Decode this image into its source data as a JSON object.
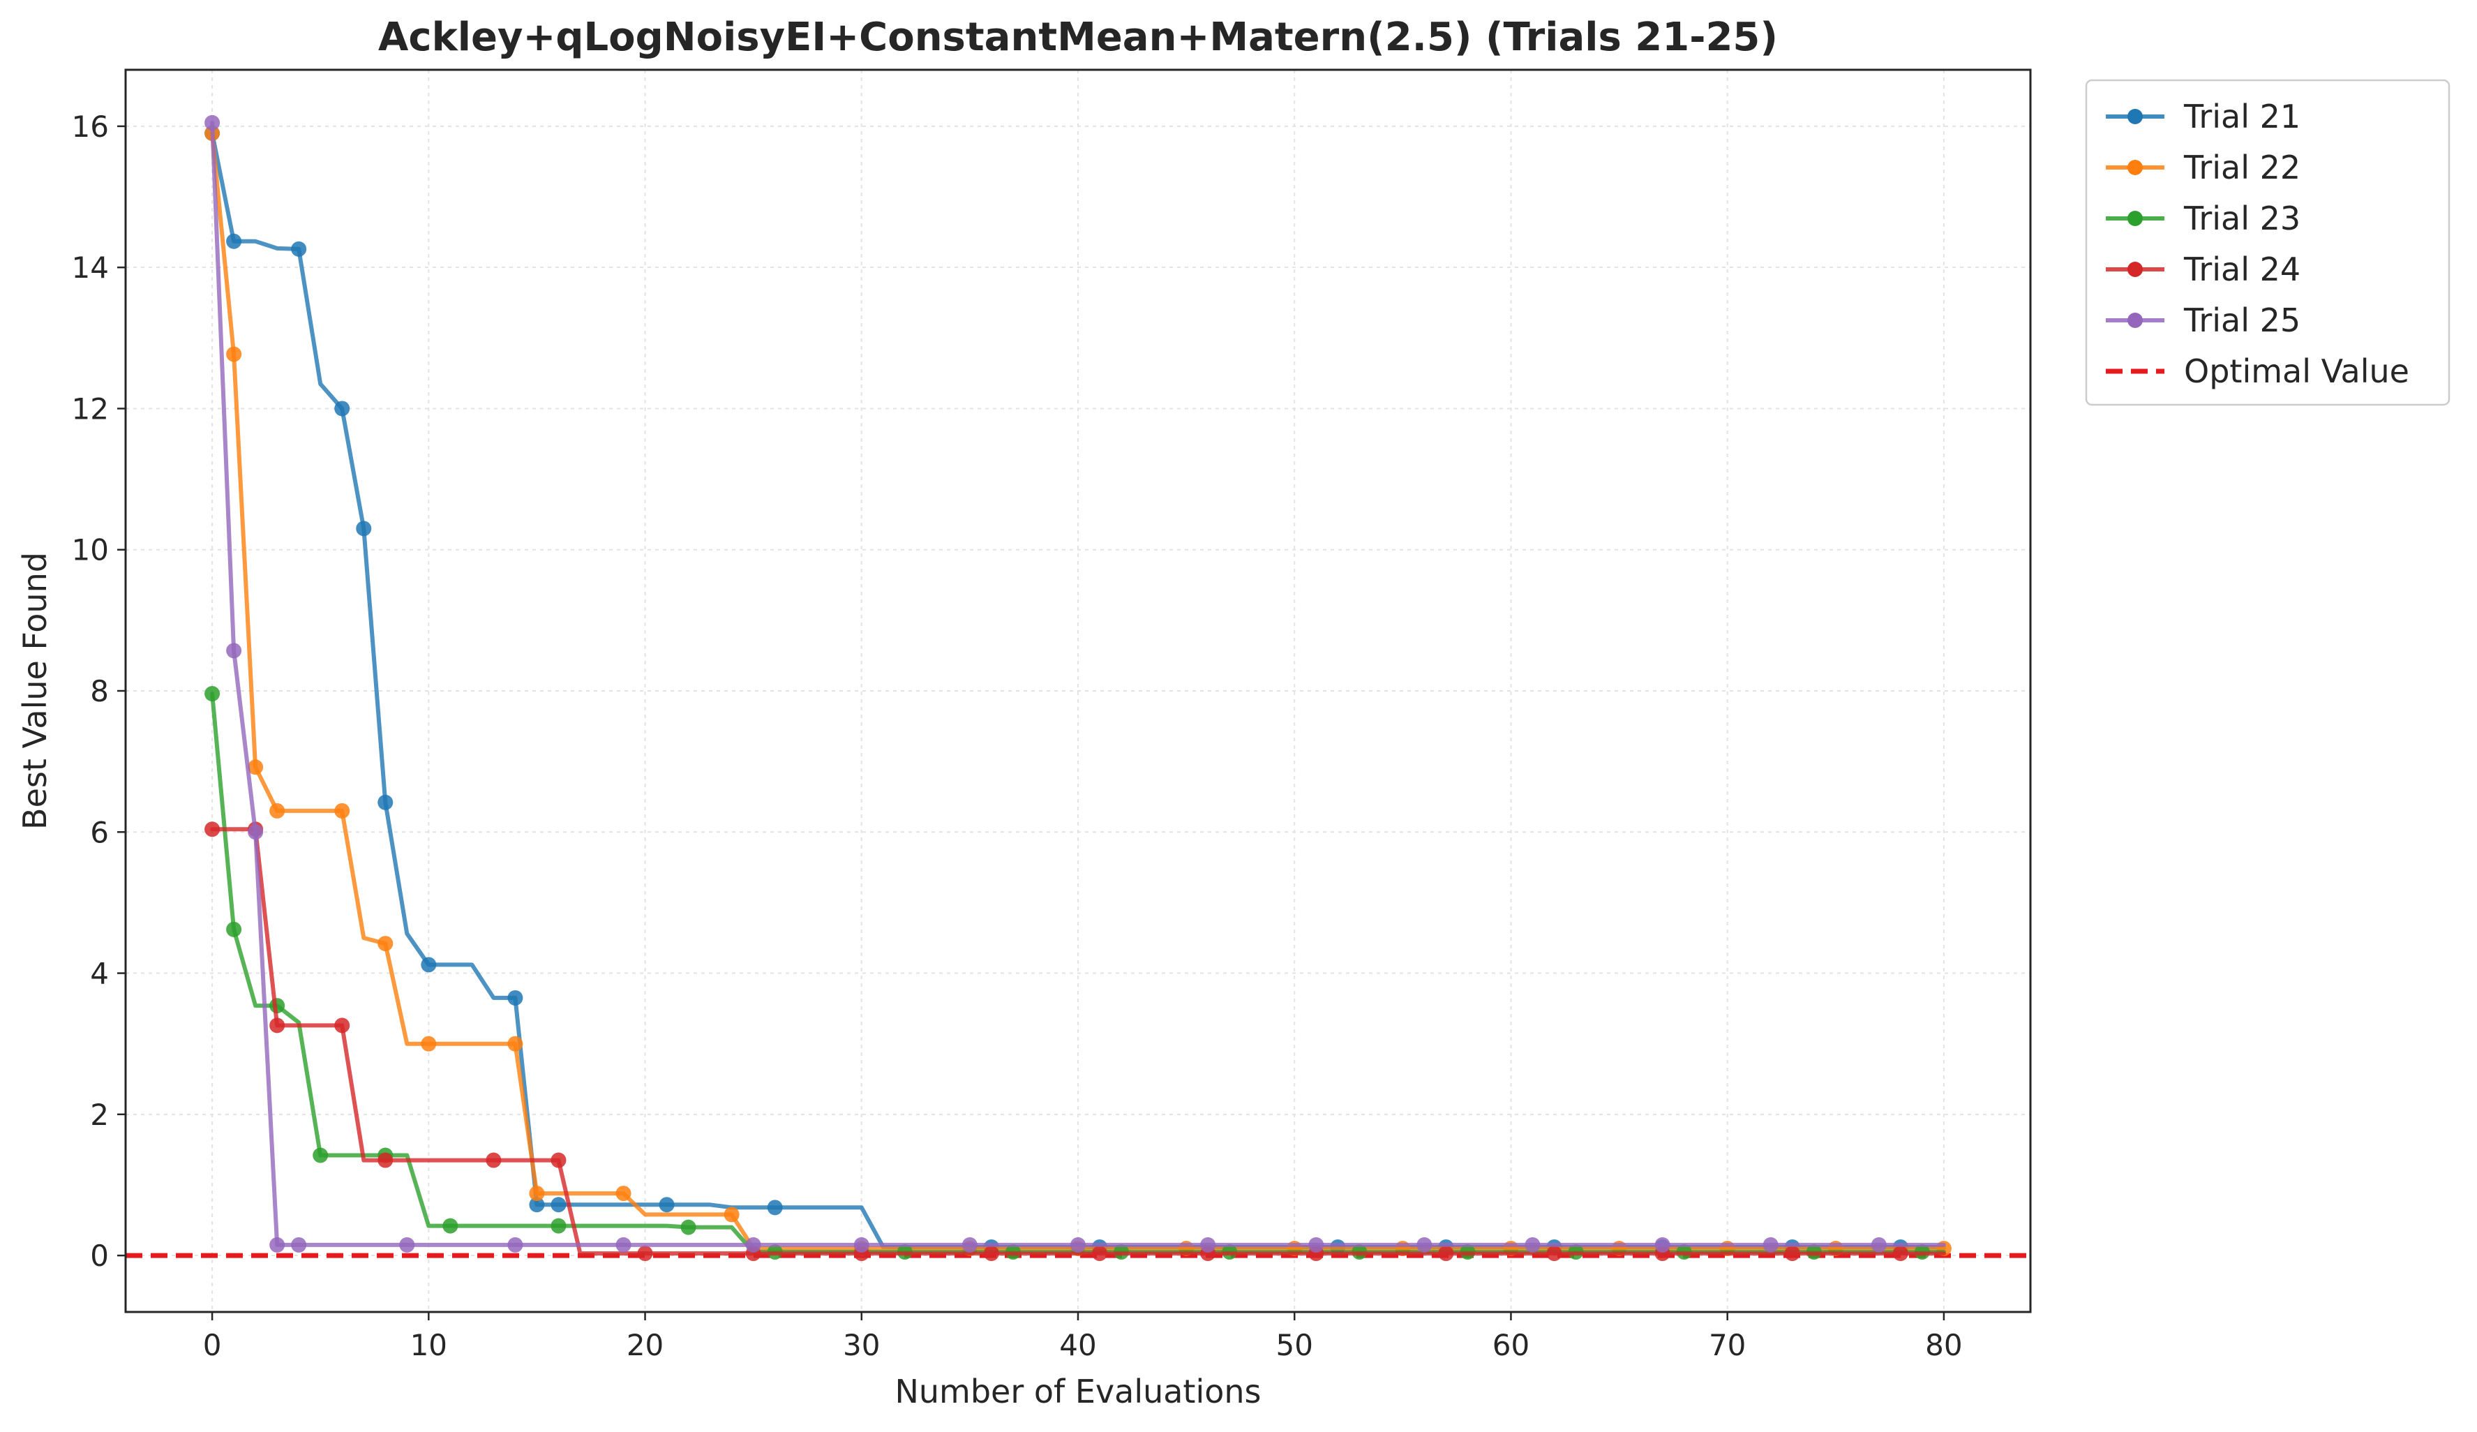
{
  "chart_data": {
    "type": "line",
    "title": "Ackley+qLogNoisyEI+ConstantMean+Matern(2.5) (Trials 21-25)",
    "xlabel": "Number of Evaluations",
    "ylabel": "Best Value Found",
    "xlim": [
      -4,
      84
    ],
    "ylim": [
      -0.8,
      16.8
    ],
    "xticks": [
      0,
      10,
      20,
      30,
      40,
      50,
      60,
      70,
      80
    ],
    "yticks": [
      0,
      2,
      4,
      6,
      8,
      10,
      12,
      14,
      16
    ],
    "grid": true,
    "legend_position": "outside-top-right",
    "optimal_value": 0,
    "optimal_label": "Optimal Value",
    "optimal_color": "#e6191f",
    "series": [
      {
        "name": "Trial 21",
        "color": "#1f77b4",
        "x": [
          0,
          1,
          2,
          3,
          4,
          5,
          6,
          7,
          8,
          9,
          10,
          11,
          12,
          13,
          14,
          15,
          16,
          17,
          18,
          19,
          20,
          21,
          22,
          23,
          24,
          25,
          26,
          27,
          28,
          29,
          30,
          31,
          32,
          33,
          34,
          35,
          36,
          37,
          38,
          39,
          40,
          41,
          42,
          43,
          44,
          45,
          46,
          47,
          48,
          49,
          50,
          51,
          52,
          53,
          54,
          55,
          56,
          57,
          58,
          59,
          60,
          61,
          62,
          63,
          64,
          65,
          66,
          67,
          68,
          69,
          70,
          71,
          72,
          73,
          74,
          75,
          76,
          77,
          78,
          79,
          80
        ],
        "y": [
          15.9,
          14.37,
          14.37,
          14.27,
          14.26,
          12.35,
          12.0,
          10.3,
          6.42,
          4.56,
          4.12,
          4.12,
          4.12,
          3.65,
          3.65,
          0.72,
          0.72,
          0.72,
          0.72,
          0.72,
          0.72,
          0.72,
          0.72,
          0.72,
          0.68,
          0.68,
          0.68,
          0.68,
          0.68,
          0.68,
          0.68,
          0.12,
          0.12,
          0.12,
          0.12,
          0.12,
          0.12,
          0.12,
          0.12,
          0.12,
          0.12,
          0.12,
          0.12,
          0.12,
          0.12,
          0.12,
          0.12,
          0.12,
          0.12,
          0.12,
          0.12,
          0.12,
          0.12,
          0.12,
          0.12,
          0.12,
          0.12,
          0.12,
          0.12,
          0.12,
          0.12,
          0.12,
          0.12,
          0.12,
          0.12,
          0.12,
          0.12,
          0.12,
          0.12,
          0.12,
          0.12,
          0.12,
          0.12,
          0.12,
          0.12,
          0.12,
          0.12,
          0.12,
          0.12,
          0.12,
          0.12
        ],
        "markers": [
          0,
          1,
          4,
          6,
          7,
          8,
          10,
          14,
          15,
          16,
          21,
          26,
          36,
          41,
          52,
          57,
          62,
          67,
          73,
          78
        ]
      },
      {
        "name": "Trial 22",
        "color": "#ff7f0e",
        "x": [
          0,
          1,
          2,
          3,
          4,
          5,
          6,
          7,
          8,
          9,
          10,
          11,
          12,
          13,
          14,
          15,
          16,
          17,
          18,
          19,
          20,
          21,
          22,
          23,
          24,
          25,
          26,
          27,
          28,
          29,
          30,
          31,
          32,
          33,
          34,
          35,
          36,
          37,
          38,
          39,
          40,
          41,
          42,
          43,
          44,
          45,
          46,
          47,
          48,
          49,
          50,
          51,
          52,
          53,
          54,
          55,
          56,
          57,
          58,
          59,
          60,
          61,
          62,
          63,
          64,
          65,
          66,
          67,
          68,
          69,
          70,
          71,
          72,
          73,
          74,
          75,
          76,
          77,
          78,
          79,
          80
        ],
        "y": [
          15.9,
          12.77,
          6.92,
          6.3,
          6.3,
          6.3,
          6.3,
          4.5,
          4.42,
          3.0,
          3.0,
          3.0,
          3.0,
          3.0,
          3.0,
          0.88,
          0.88,
          0.88,
          0.88,
          0.88,
          0.58,
          0.58,
          0.58,
          0.58,
          0.58,
          0.1,
          0.1,
          0.1,
          0.1,
          0.1,
          0.1,
          0.1,
          0.1,
          0.1,
          0.1,
          0.1,
          0.1,
          0.1,
          0.1,
          0.1,
          0.1,
          0.1,
          0.1,
          0.1,
          0.1,
          0.1,
          0.1,
          0.1,
          0.1,
          0.1,
          0.1,
          0.1,
          0.1,
          0.1,
          0.1,
          0.1,
          0.1,
          0.1,
          0.1,
          0.1,
          0.1,
          0.1,
          0.1,
          0.1,
          0.1,
          0.1,
          0.1,
          0.1,
          0.1,
          0.1,
          0.1,
          0.1,
          0.1,
          0.1,
          0.1,
          0.1,
          0.1,
          0.1,
          0.1,
          0.1,
          0.1
        ],
        "markers": [
          0,
          1,
          2,
          3,
          6,
          8,
          10,
          14,
          15,
          19,
          24,
          30,
          35,
          40,
          45,
          50,
          55,
          60,
          65,
          70,
          75,
          80
        ]
      },
      {
        "name": "Trial 23",
        "color": "#2ca02c",
        "x": [
          0,
          1,
          2,
          3,
          4,
          5,
          6,
          7,
          8,
          9,
          10,
          11,
          12,
          13,
          14,
          15,
          16,
          17,
          18,
          19,
          20,
          21,
          22,
          23,
          24,
          25,
          26,
          27,
          28,
          29,
          30,
          31,
          32,
          33,
          34,
          35,
          36,
          37,
          38,
          39,
          40,
          41,
          42,
          43,
          44,
          45,
          46,
          47,
          48,
          49,
          50,
          51,
          52,
          53,
          54,
          55,
          56,
          57,
          58,
          59,
          60,
          61,
          62,
          63,
          64,
          65,
          66,
          67,
          68,
          69,
          70,
          71,
          72,
          73,
          74,
          75,
          76,
          77,
          78,
          79,
          80
        ],
        "y": [
          7.96,
          4.62,
          3.54,
          3.54,
          3.3,
          1.42,
          1.42,
          1.42,
          1.42,
          1.42,
          0.42,
          0.42,
          0.42,
          0.42,
          0.42,
          0.42,
          0.42,
          0.42,
          0.42,
          0.42,
          0.42,
          0.42,
          0.4,
          0.4,
          0.4,
          0.05,
          0.05,
          0.05,
          0.05,
          0.05,
          0.05,
          0.05,
          0.05,
          0.05,
          0.05,
          0.05,
          0.05,
          0.05,
          0.05,
          0.05,
          0.05,
          0.05,
          0.05,
          0.05,
          0.05,
          0.05,
          0.05,
          0.05,
          0.05,
          0.05,
          0.05,
          0.05,
          0.05,
          0.05,
          0.05,
          0.05,
          0.05,
          0.05,
          0.05,
          0.05,
          0.05,
          0.05,
          0.05,
          0.05,
          0.05,
          0.05,
          0.05,
          0.05,
          0.05,
          0.05,
          0.05,
          0.05,
          0.05,
          0.05,
          0.05,
          0.05,
          0.05,
          0.05,
          0.05,
          0.05,
          0.05
        ],
        "markers": [
          0,
          1,
          3,
          5,
          8,
          11,
          16,
          22,
          26,
          32,
          37,
          42,
          47,
          53,
          58,
          63,
          68,
          74,
          79
        ]
      },
      {
        "name": "Trial 24",
        "color": "#d62728",
        "x": [
          0,
          1,
          2,
          3,
          4,
          5,
          6,
          7,
          8,
          9,
          10,
          11,
          12,
          13,
          14,
          15,
          16,
          17,
          18,
          19,
          20,
          21,
          22,
          23,
          24,
          25,
          26,
          27,
          28,
          29,
          30,
          31,
          32,
          33,
          34,
          35,
          36,
          37,
          38,
          39,
          40,
          41,
          42,
          43,
          44,
          45,
          46,
          47,
          48,
          49,
          50,
          51,
          52,
          53,
          54,
          55,
          56,
          57,
          58,
          59,
          60,
          61,
          62,
          63,
          64,
          65,
          66,
          67,
          68,
          69,
          70,
          71,
          72,
          73,
          74,
          75,
          76,
          77,
          78,
          79,
          80
        ],
        "y": [
          6.04,
          6.04,
          6.04,
          3.26,
          3.26,
          3.26,
          3.26,
          1.35,
          1.35,
          1.35,
          1.35,
          1.35,
          1.35,
          1.35,
          1.35,
          1.35,
          1.35,
          0.03,
          0.03,
          0.03,
          0.03,
          0.03,
          0.03,
          0.03,
          0.03,
          0.03,
          0.03,
          0.03,
          0.03,
          0.03,
          0.03,
          0.03,
          0.03,
          0.03,
          0.03,
          0.03,
          0.03,
          0.03,
          0.03,
          0.03,
          0.03,
          0.03,
          0.03,
          0.03,
          0.03,
          0.03,
          0.03,
          0.03,
          0.03,
          0.03,
          0.03,
          0.03,
          0.03,
          0.03,
          0.03,
          0.03,
          0.03,
          0.03,
          0.03,
          0.03,
          0.03,
          0.03,
          0.03,
          0.03,
          0.03,
          0.03,
          0.03,
          0.03,
          0.03,
          0.03,
          0.03,
          0.03,
          0.03,
          0.03,
          0.03,
          0.03,
          0.03,
          0.03,
          0.03,
          0.03,
          0.03
        ],
        "markers": [
          0,
          2,
          3,
          6,
          8,
          13,
          16,
          20,
          25,
          30,
          36,
          41,
          46,
          51,
          57,
          62,
          67,
          73,
          78
        ]
      },
      {
        "name": "Trial 25",
        "color": "#9467bd",
        "x": [
          0,
          1,
          2,
          3,
          4,
          5,
          6,
          7,
          8,
          9,
          10,
          11,
          12,
          13,
          14,
          15,
          16,
          17,
          18,
          19,
          20,
          21,
          22,
          23,
          24,
          25,
          26,
          27,
          28,
          29,
          30,
          31,
          32,
          33,
          34,
          35,
          36,
          37,
          38,
          39,
          40,
          41,
          42,
          43,
          44,
          45,
          46,
          47,
          48,
          49,
          50,
          51,
          52,
          53,
          54,
          55,
          56,
          57,
          58,
          59,
          60,
          61,
          62,
          63,
          64,
          65,
          66,
          67,
          68,
          69,
          70,
          71,
          72,
          73,
          74,
          75,
          76,
          77,
          78,
          79,
          80
        ],
        "y": [
          16.05,
          8.57,
          6.0,
          0.15,
          0.15,
          0.15,
          0.15,
          0.15,
          0.15,
          0.15,
          0.15,
          0.15,
          0.15,
          0.15,
          0.15,
          0.15,
          0.15,
          0.15,
          0.15,
          0.15,
          0.15,
          0.15,
          0.15,
          0.15,
          0.15,
          0.15,
          0.15,
          0.15,
          0.15,
          0.15,
          0.15,
          0.15,
          0.15,
          0.15,
          0.15,
          0.15,
          0.15,
          0.15,
          0.15,
          0.15,
          0.15,
          0.15,
          0.15,
          0.15,
          0.15,
          0.15,
          0.15,
          0.15,
          0.15,
          0.15,
          0.15,
          0.15,
          0.15,
          0.15,
          0.15,
          0.15,
          0.15,
          0.15,
          0.15,
          0.15,
          0.15,
          0.15,
          0.15,
          0.15,
          0.15,
          0.15,
          0.15,
          0.15,
          0.15,
          0.15,
          0.15,
          0.15,
          0.15,
          0.15,
          0.15,
          0.15,
          0.15,
          0.15,
          0.15,
          0.15,
          0.15
        ],
        "markers": [
          0,
          1,
          2,
          3,
          4,
          9,
          14,
          19,
          25,
          30,
          35,
          40,
          46,
          51,
          56,
          61,
          67,
          72,
          77
        ]
      }
    ]
  }
}
